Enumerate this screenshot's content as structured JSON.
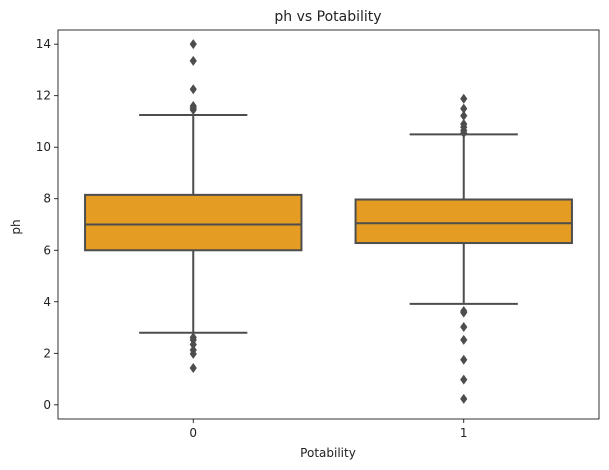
{
  "chart_data": {
    "type": "box",
    "title": "ph vs Potability",
    "xlabel": "Potability",
    "ylabel": "ph",
    "categories": [
      "0",
      "1"
    ],
    "ylim": [
      -0.55,
      14.55
    ],
    "yticks": [
      0,
      2,
      4,
      6,
      8,
      10,
      12,
      14
    ],
    "grid": false,
    "legend": "none",
    "box_color": "#e59c22",
    "line_color": "#4d4d4d",
    "series": [
      {
        "category": "0",
        "whisker_low": 2.8,
        "q1": 6.0,
        "median": 7.0,
        "q3": 8.15,
        "whisker_high": 11.25,
        "outliers": [
          1.43,
          1.98,
          2.13,
          2.34,
          2.52,
          2.62,
          11.45,
          11.52,
          11.6,
          12.25,
          13.35,
          14.0
        ]
      },
      {
        "category": "1",
        "whisker_low": 3.92,
        "q1": 6.28,
        "median": 7.05,
        "q3": 7.97,
        "whisker_high": 10.5,
        "outliers": [
          0.23,
          0.98,
          1.75,
          2.52,
          3.02,
          3.58,
          3.64,
          10.55,
          10.65,
          10.78,
          10.9,
          11.22,
          11.5,
          11.88
        ]
      }
    ]
  }
}
